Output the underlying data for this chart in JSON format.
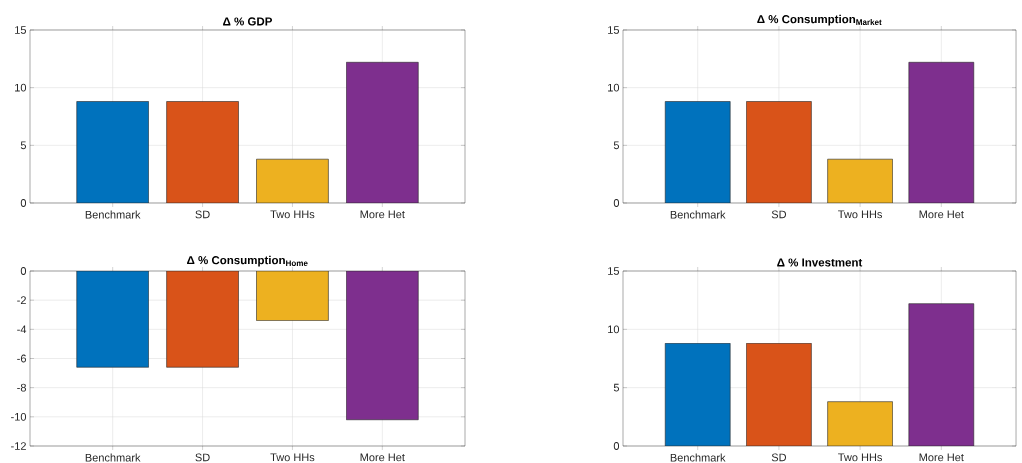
{
  "chart_data": [
    {
      "type": "bar",
      "title": "Δ % GDP",
      "categories": [
        "Benchmark",
        "SD",
        "Two HHs",
        "More Het"
      ],
      "values": [
        8.8,
        8.8,
        3.8,
        12.2
      ],
      "colors": [
        "#0072bd",
        "#d95319",
        "#edb120",
        "#7e2f8e"
      ],
      "ylim": [
        0,
        15
      ],
      "yticks": [
        0,
        5,
        10,
        15
      ],
      "grid": true
    },
    {
      "type": "bar",
      "title": "Δ % Consumption$_{Market}$",
      "categories": [
        "Benchmark",
        "SD",
        "Two HHs",
        "More Het"
      ],
      "values": [
        8.8,
        8.8,
        3.8,
        12.2
      ],
      "colors": [
        "#0072bd",
        "#d95319",
        "#edb120",
        "#7e2f8e"
      ],
      "ylim": [
        0,
        15
      ],
      "yticks": [
        0,
        5,
        10,
        15
      ],
      "grid": true
    },
    {
      "type": "bar",
      "title": "Δ % Consumption$_{Home}$",
      "categories": [
        "Benchmark",
        "SD",
        "Two HHs",
        "More Het"
      ],
      "values": [
        -6.6,
        -6.6,
        -3.4,
        -10.2
      ],
      "colors": [
        "#0072bd",
        "#d95319",
        "#edb120",
        "#7e2f8e"
      ],
      "ylim": [
        -12,
        0
      ],
      "yticks": [
        -12,
        -10,
        -8,
        -6,
        -4,
        -2,
        0
      ],
      "grid": true
    },
    {
      "type": "bar",
      "title": "Δ % Investment",
      "categories": [
        "Benchmark",
        "SD",
        "Two HHs",
        "More Het"
      ],
      "values": [
        8.8,
        8.8,
        3.8,
        12.2
      ],
      "colors": [
        "#0072bd",
        "#d95319",
        "#edb120",
        "#7e2f8e"
      ],
      "ylim": [
        0,
        15
      ],
      "yticks": [
        0,
        5,
        10,
        15
      ],
      "grid": true
    }
  ]
}
